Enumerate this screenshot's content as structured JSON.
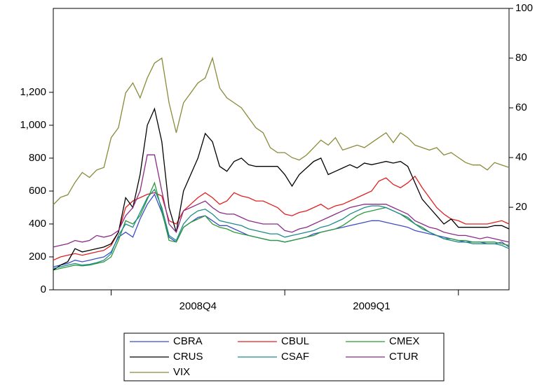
{
  "chart_data": {
    "type": "line",
    "categories": [
      null,
      null,
      null,
      null,
      null,
      null,
      null,
      null,
      null,
      null,
      null,
      null,
      null,
      null,
      null,
      null,
      null,
      null,
      null,
      null,
      "2008Q4",
      null,
      null,
      null,
      null,
      null,
      null,
      null,
      null,
      null,
      null,
      null,
      null,
      null,
      null,
      null,
      null,
      null,
      null,
      null,
      null,
      null,
      null,
      null,
      "2009Q1",
      null,
      null,
      null,
      null,
      null,
      null,
      null,
      null,
      null,
      null,
      null,
      null,
      null,
      null,
      null,
      null,
      null,
      null,
      null
    ],
    "ylim": [
      0,
      1710
    ],
    "yticks": [
      0,
      200,
      400,
      600,
      800,
      {
        "value": 1000,
        "label": "1,000"
      },
      {
        "value": 1200,
        "label": "1,200"
      }
    ],
    "y2lim": [
      -13.2,
      100
    ],
    "y2ticks": [
      20,
      40,
      60,
      80,
      100
    ],
    "series": [
      {
        "name": "CBRA",
        "color": "#3d4ec4",
        "values": [
          140,
          150,
          160,
          180,
          170,
          180,
          190,
          200,
          230,
          320,
          350,
          320,
          430,
          520,
          580,
          470,
          320,
          290,
          380,
          410,
          440,
          450,
          420,
          390,
          390,
          370,
          350,
          330,
          320,
          310,
          300,
          300,
          290,
          300,
          310,
          320,
          340,
          350,
          360,
          370,
          380,
          390,
          400,
          410,
          420,
          420,
          410,
          400,
          390,
          380,
          360,
          350,
          340,
          330,
          320,
          310,
          300,
          290,
          290,
          290,
          280,
          280,
          290,
          260
        ]
      },
      {
        "name": "CBUL",
        "color": "#e02020",
        "values": [
          180,
          200,
          210,
          220,
          210,
          220,
          230,
          240,
          270,
          350,
          500,
          540,
          560,
          580,
          590,
          570,
          420,
          400,
          480,
          520,
          560,
          590,
          560,
          520,
          540,
          590,
          570,
          560,
          540,
          540,
          520,
          500,
          460,
          450,
          470,
          480,
          500,
          520,
          490,
          510,
          520,
          540,
          560,
          580,
          600,
          660,
          680,
          640,
          620,
          650,
          690,
          620,
          560,
          500,
          460,
          430,
          420,
          400,
          400,
          400,
          400,
          410,
          420,
          400
        ]
      },
      {
        "name": "CMEX",
        "color": "#2a9a3a",
        "values": [
          120,
          130,
          140,
          150,
          145,
          150,
          160,
          170,
          200,
          300,
          420,
          400,
          450,
          550,
          650,
          480,
          300,
          290,
          380,
          410,
          430,
          450,
          400,
          380,
          370,
          350,
          340,
          330,
          320,
          310,
          300,
          300,
          290,
          300,
          310,
          320,
          330,
          350,
          360,
          370,
          390,
          420,
          450,
          470,
          480,
          490,
          500,
          480,
          460,
          430,
          400,
          380,
          350,
          330,
          310,
          310,
          300,
          300,
          290,
          290,
          290,
          290,
          280,
          270
        ]
      },
      {
        "name": "CRUS",
        "color": "#000000",
        "values": [
          120,
          150,
          170,
          250,
          230,
          240,
          250,
          260,
          280,
          350,
          560,
          500,
          700,
          1000,
          1100,
          900,
          500,
          350,
          600,
          700,
          800,
          950,
          900,
          750,
          720,
          780,
          800,
          760,
          750,
          750,
          750,
          750,
          700,
          630,
          700,
          740,
          780,
          800,
          700,
          720,
          740,
          760,
          740,
          770,
          760,
          770,
          780,
          770,
          780,
          750,
          650,
          550,
          500,
          450,
          400,
          430,
          380,
          380,
          380,
          380,
          380,
          390,
          390,
          370
        ]
      },
      {
        "name": "CSAF",
        "color": "#1f8a8a",
        "values": [
          130,
          140,
          150,
          160,
          150,
          155,
          165,
          180,
          220,
          330,
          400,
          380,
          470,
          560,
          610,
          500,
          330,
          300,
          400,
          450,
          480,
          490,
          460,
          420,
          410,
          400,
          390,
          370,
          360,
          350,
          340,
          340,
          320,
          330,
          340,
          350,
          360,
          380,
          390,
          410,
          430,
          460,
          480,
          500,
          510,
          510,
          500,
          480,
          460,
          440,
          400,
          370,
          350,
          330,
          310,
          300,
          290,
          290,
          280,
          280,
          280,
          280,
          270,
          250
        ]
      },
      {
        "name": "CTUR",
        "color": "#8a2b8a",
        "values": [
          260,
          270,
          280,
          300,
          290,
          300,
          330,
          320,
          330,
          360,
          450,
          500,
          600,
          820,
          820,
          600,
          400,
          350,
          480,
          500,
          520,
          540,
          500,
          470,
          460,
          460,
          440,
          420,
          410,
          400,
          400,
          400,
          360,
          350,
          370,
          380,
          400,
          420,
          440,
          460,
          480,
          500,
          510,
          520,
          520,
          520,
          520,
          500,
          480,
          460,
          420,
          400,
          380,
          370,
          350,
          340,
          330,
          330,
          320,
          310,
          320,
          310,
          300,
          290
        ]
      },
      {
        "name": "VIX",
        "color": "#8a8a3a",
        "axis": "y2",
        "values": [
          21,
          24,
          25,
          30,
          34,
          32,
          35,
          36,
          48,
          52,
          66,
          70,
          64,
          72,
          78,
          80,
          62,
          50,
          62,
          66,
          70,
          72,
          80,
          68,
          64,
          62,
          60,
          56,
          52,
          50,
          44,
          42,
          42,
          40,
          39,
          41,
          44,
          47,
          45,
          48,
          43,
          44,
          45,
          44,
          46,
          48,
          50,
          46,
          50,
          48,
          45,
          44,
          43,
          44,
          41,
          42,
          40,
          38,
          37,
          37,
          35,
          38,
          37,
          36
        ]
      }
    ]
  }
}
